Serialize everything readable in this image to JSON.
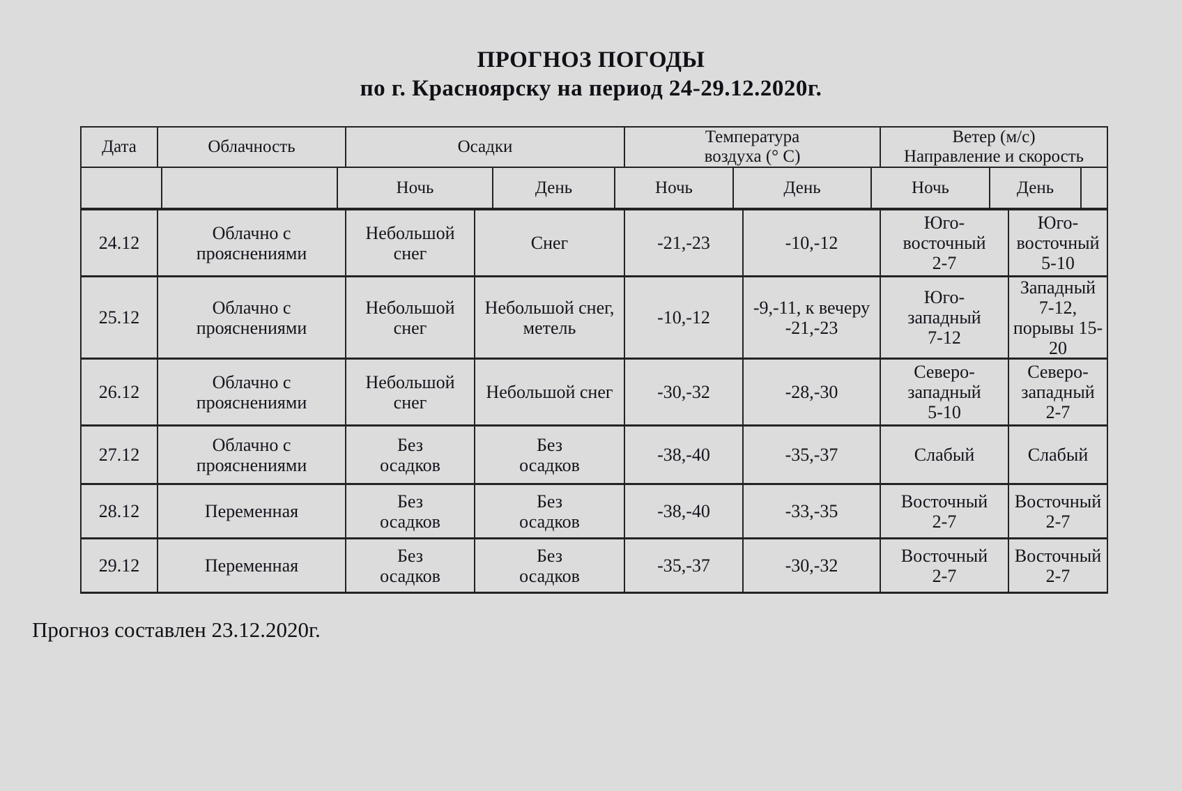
{
  "title": {
    "line1": "ПРОГНОЗ ПОГОДЫ",
    "line2": "по г. Красноярску на период 24-29.12.2020г."
  },
  "table": {
    "header": {
      "date": "Дата",
      "cloudiness": "Облачность",
      "precipitation": "Осадки",
      "temperature": "Температура\nвоздуха (° С)",
      "wind": "Ветер (м/с)\nНаправление и скорость",
      "night": "Ночь",
      "day": "День"
    },
    "rows": [
      {
        "date": "24.12",
        "cloudiness": "Облачно с\nпрояснениями",
        "precip_night": "Небольшой\nснег",
        "precip_day": "Снег",
        "temp_night": "-21,-23",
        "temp_day": "-10,-12",
        "wind_night": "Юго-\nвосточный\n2-7",
        "wind_day": "Юго-\nвосточный\n5-10"
      },
      {
        "date": "25.12",
        "cloudiness": "Облачно с\nпрояснениями",
        "precip_night": "Небольшой\nснег",
        "precip_day": "Небольшой снег,\nметель",
        "temp_night": "-10,-12",
        "temp_day": "-9,-11, к вечеру\n-21,-23",
        "wind_night": "Юго-\nзападный\n7-12",
        "wind_day": "Западный\n7-12,\nпорывы 15-\n20"
      },
      {
        "date": "26.12",
        "cloudiness": "Облачно с\nпрояснениями",
        "precip_night": "Небольшой\nснег",
        "precip_day": "Небольшой снег",
        "temp_night": "-30,-32",
        "temp_day": "-28,-30",
        "wind_night": "Северо-\nзападный\n5-10",
        "wind_day": "Северо-\nзападный\n2-7"
      },
      {
        "date": "27.12",
        "cloudiness": "Облачно с\nпрояснениями",
        "precip_night": "Без\nосадков",
        "precip_day": "Без\nосадков",
        "temp_night": "-38,-40",
        "temp_day": "-35,-37",
        "wind_night": "Слабый",
        "wind_day": "Слабый"
      },
      {
        "date": "28.12",
        "cloudiness": "Переменная",
        "precip_night": "Без\nосадков",
        "precip_day": "Без\nосадков",
        "temp_night": "-38,-40",
        "temp_day": "-33,-35",
        "wind_night": "Восточный\n2-7",
        "wind_day": "Восточный\n2-7"
      },
      {
        "date": "29.12",
        "cloudiness": "Переменная",
        "precip_night": "Без\nосадков",
        "precip_day": "Без\nосадков",
        "temp_night": "-35,-37",
        "temp_day": "-30,-32",
        "wind_night": "Восточный\n2-7",
        "wind_day": "Восточный\n2-7"
      }
    ]
  },
  "footer": {
    "text": "Прогноз составлен 23.12.2020г."
  },
  "colors": {
    "background": "#dcdcdc",
    "text": "#14141c",
    "border": "#232323"
  }
}
